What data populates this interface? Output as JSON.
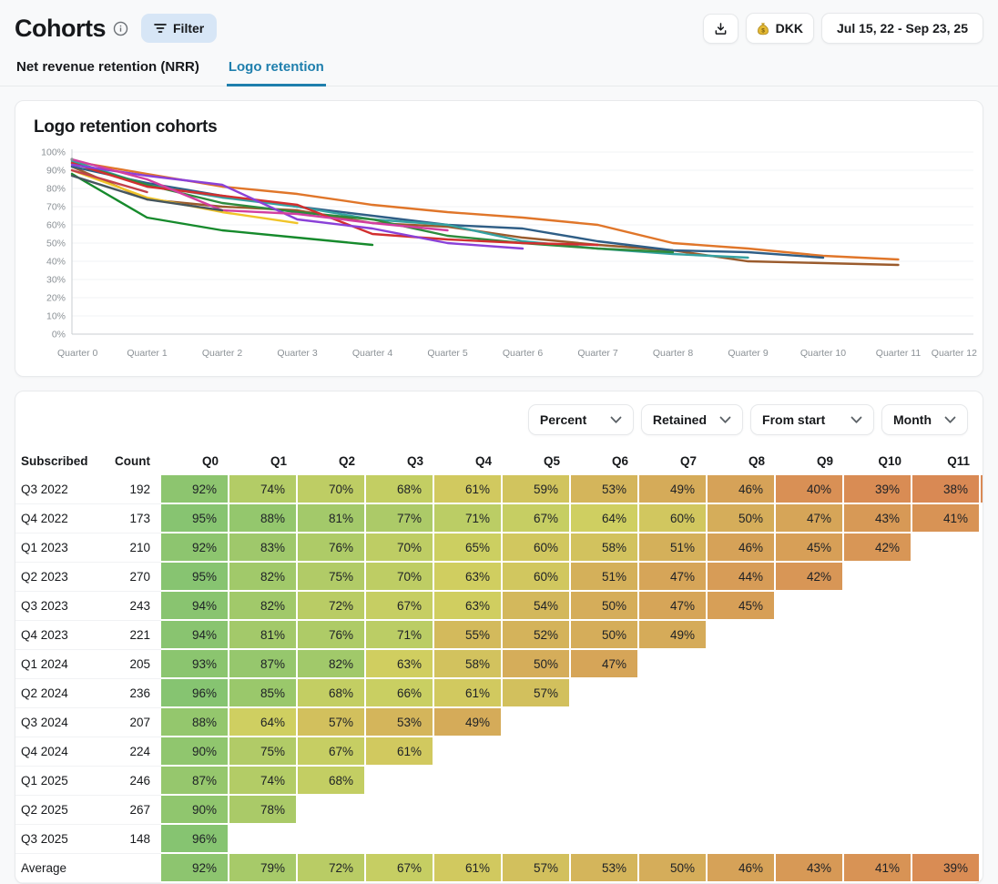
{
  "page": {
    "title": "Cohorts"
  },
  "toolbar": {
    "filter_label": "Filter",
    "download_icon": "download-icon",
    "currency_label": "DKK",
    "currency_icon": "money-bag-icon",
    "date_range": "Jul 15, 22 - Sep 23, 25"
  },
  "tabs": [
    {
      "label": "Net revenue retention (NRR)",
      "active": false
    },
    {
      "label": "Logo retention",
      "active": true
    }
  ],
  "chart_card": {
    "title": "Logo retention cohorts"
  },
  "controls": {
    "metric": "Percent",
    "mode": "Retained",
    "origin": "From start",
    "granularity": "Month"
  },
  "chart_data": {
    "type": "line",
    "x_labels": [
      "Quarter 0",
      "Quarter 1",
      "Quarter 2",
      "Quarter 3",
      "Quarter 4",
      "Quarter 5",
      "Quarter 6",
      "Quarter 7",
      "Quarter 8",
      "Quarter 9",
      "Quarter 10",
      "Quarter 11",
      "Quarter 12"
    ],
    "ylabel": "",
    "xlabel": "",
    "ylim": [
      0,
      100
    ],
    "y_tick_step": 10,
    "y_tick_suffix": "%",
    "grid": true,
    "legend_position": "none",
    "series": [
      {
        "name": "Q3 2022",
        "count": 192,
        "color": "#9a5b2d",
        "values": [
          92,
          74,
          70,
          68,
          61,
          59,
          53,
          49,
          46,
          40,
          39,
          38
        ]
      },
      {
        "name": "Q4 2022",
        "count": 173,
        "color": "#e0762a",
        "values": [
          95,
          88,
          81,
          77,
          71,
          67,
          64,
          60,
          50,
          47,
          43,
          41
        ]
      },
      {
        "name": "Q1 2023",
        "count": 210,
        "color": "#2f5e86",
        "values": [
          92,
          83,
          76,
          70,
          65,
          60,
          58,
          51,
          46,
          45,
          42
        ]
      },
      {
        "name": "Q2 2023",
        "count": 270,
        "color": "#35a2a2",
        "values": [
          95,
          82,
          75,
          70,
          63,
          60,
          51,
          47,
          44,
          42
        ]
      },
      {
        "name": "Q3 2023",
        "count": 243,
        "color": "#2e8b3d",
        "values": [
          94,
          82,
          72,
          67,
          63,
          54,
          50,
          47,
          45
        ]
      },
      {
        "name": "Q4 2023",
        "count": 221,
        "color": "#d22f2f",
        "values": [
          94,
          81,
          76,
          71,
          55,
          52,
          50,
          49
        ]
      },
      {
        "name": "Q1 2024",
        "count": 205,
        "color": "#8a41d8",
        "values": [
          93,
          87,
          82,
          63,
          58,
          50,
          47
        ]
      },
      {
        "name": "Q2 2024",
        "count": 236,
        "color": "#d23fa0",
        "values": [
          96,
          85,
          68,
          66,
          61,
          57
        ]
      },
      {
        "name": "Q3 2024",
        "count": 207,
        "color": "#168a2c",
        "values": [
          88,
          64,
          57,
          53,
          49
        ]
      },
      {
        "name": "Q4 2024",
        "count": 224,
        "color": "#f0c429",
        "values": [
          90,
          75,
          67,
          61
        ]
      },
      {
        "name": "Q1 2025",
        "count": 246,
        "color": "#46565e",
        "values": [
          87,
          74,
          68
        ]
      },
      {
        "name": "Q2 2025",
        "count": 267,
        "color": "#c2414b",
        "values": [
          90,
          78
        ]
      },
      {
        "name": "Q3 2025",
        "count": 148,
        "color": "#8a8f94",
        "values": [
          96
        ]
      }
    ]
  },
  "table": {
    "columns": [
      "Subscribed",
      "Count",
      "Q0",
      "Q1",
      "Q2",
      "Q3",
      "Q4",
      "Q5",
      "Q6",
      "Q7",
      "Q8",
      "Q9",
      "Q10",
      "Q11"
    ],
    "value_suffix": "%",
    "average_row": {
      "label": "Average",
      "values": [
        92,
        79,
        72,
        67,
        61,
        57,
        53,
        50,
        46,
        43,
        41,
        39
      ]
    },
    "heatmap": {
      "min_value": 38,
      "max_value": 96,
      "low_color_hint": "#da8953",
      "high_color_hint": "#85c270"
    }
  }
}
